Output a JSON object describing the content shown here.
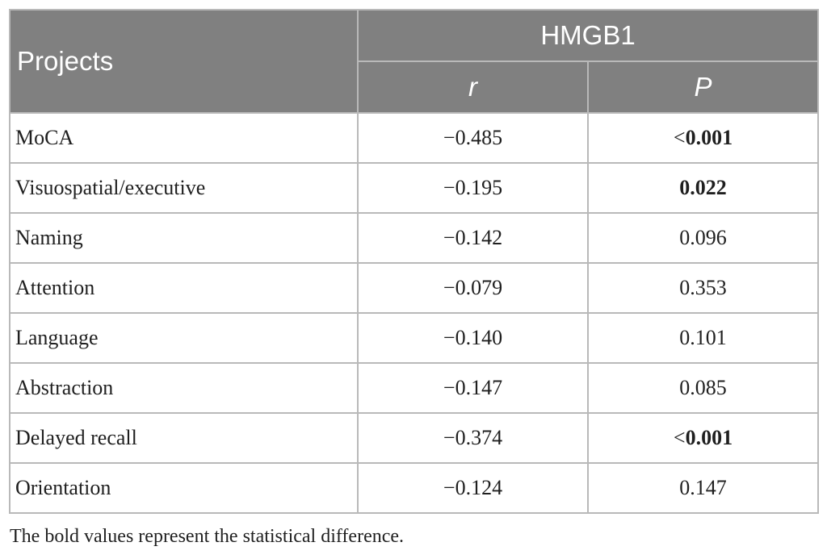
{
  "header": {
    "projects_label": "Projects",
    "group_label": "HMGB1",
    "col_r": "r",
    "col_p": "P"
  },
  "rows": [
    {
      "project": "MoCA",
      "r": "−0.485",
      "p_prefix": "<",
      "p_value": "0.001",
      "p_bold": true
    },
    {
      "project": "Visuospatial/executive",
      "r": "−0.195",
      "p_prefix": "",
      "p_value": "0.022",
      "p_bold": true
    },
    {
      "project": "Naming",
      "r": "−0.142",
      "p_prefix": "",
      "p_value": "0.096",
      "p_bold": false
    },
    {
      "project": "Attention",
      "r": "−0.079",
      "p_prefix": "",
      "p_value": "0.353",
      "p_bold": false
    },
    {
      "project": "Language",
      "r": "−0.140",
      "p_prefix": "",
      "p_value": "0.101",
      "p_bold": false
    },
    {
      "project": "Abstraction",
      "r": "−0.147",
      "p_prefix": "",
      "p_value": "0.085",
      "p_bold": false
    },
    {
      "project": "Delayed recall",
      "r": "−0.374",
      "p_prefix": "<",
      "p_value": "0.001",
      "p_bold": true
    },
    {
      "project": "Orientation",
      "r": "−0.124",
      "p_prefix": "",
      "p_value": "0.147",
      "p_bold": false
    }
  ],
  "footnote": "The bold values represent the statistical difference.",
  "colors": {
    "header_bg": "#808080",
    "header_text": "#ffffff",
    "grid_line": "#b9b9b9"
  }
}
